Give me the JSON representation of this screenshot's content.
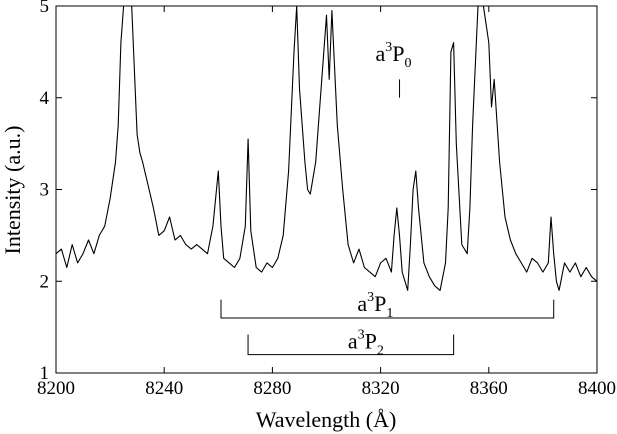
{
  "chart_data": {
    "type": "line",
    "xlabel": "Wavelength (Å)",
    "ylabel": "Intensity (a.u.)",
    "xlim": [
      8200,
      8400
    ],
    "ylim": [
      1,
      5
    ],
    "x_ticks": [
      8200,
      8240,
      8280,
      8320,
      8360,
      8400
    ],
    "y_ticks": [
      1,
      2,
      3,
      4,
      5
    ],
    "grid": false,
    "series": [
      {
        "x": [
          8200,
          8202,
          8204,
          8206,
          8208,
          8210,
          8212,
          8214,
          8216,
          8218,
          8220,
          8222,
          8223,
          8224,
          8225,
          8226,
          8228,
          8230,
          8231,
          8232,
          8234,
          8236,
          8238,
          8240,
          8242,
          8244,
          8246,
          8248,
          8250,
          8252,
          8254,
          8256,
          8258,
          8259,
          8260,
          8261,
          8262,
          8264,
          8266,
          8268,
          8270,
          8271,
          8272,
          8274,
          8276,
          8278,
          8280,
          8282,
          8284,
          8286,
          8288,
          8289,
          8290,
          8292,
          8293,
          8294,
          8296,
          8298,
          8300,
          8301,
          8302,
          8304,
          8306,
          8308,
          8310,
          8312,
          8314,
          8316,
          8318,
          8320,
          8322,
          8324,
          8325,
          8326,
          8327,
          8328,
          8330,
          8331,
          8332,
          8333,
          8334,
          8336,
          8338,
          8340,
          8342,
          8344,
          8345,
          8346,
          8347,
          8348,
          8350,
          8352,
          8353,
          8354,
          8356,
          8358,
          8360,
          8361,
          8362,
          8364,
          8366,
          8368,
          8370,
          8372,
          8374,
          8376,
          8378,
          8380,
          8382,
          8383,
          8384,
          8385,
          8386,
          8388,
          8390,
          8392,
          8394,
          8396,
          8398,
          8400
        ],
        "y": [
          2.3,
          2.35,
          2.15,
          2.4,
          2.2,
          2.3,
          2.45,
          2.3,
          2.5,
          2.6,
          2.9,
          3.3,
          3.7,
          4.6,
          5.0,
          5.0,
          5.0,
          3.6,
          3.4,
          3.3,
          3.05,
          2.8,
          2.5,
          2.55,
          2.7,
          2.45,
          2.5,
          2.4,
          2.35,
          2.4,
          2.35,
          2.3,
          2.6,
          2.9,
          3.2,
          2.6,
          2.25,
          2.2,
          2.15,
          2.25,
          2.6,
          3.55,
          2.55,
          2.15,
          2.1,
          2.2,
          2.15,
          2.25,
          2.5,
          3.2,
          4.5,
          5.0,
          4.1,
          3.3,
          3.0,
          2.95,
          3.3,
          4.1,
          4.9,
          4.2,
          4.95,
          3.7,
          3.0,
          2.4,
          2.2,
          2.35,
          2.15,
          2.1,
          2.05,
          2.2,
          2.25,
          2.1,
          2.5,
          2.8,
          2.5,
          2.1,
          1.9,
          2.4,
          3.0,
          3.2,
          2.8,
          2.2,
          2.05,
          1.95,
          1.9,
          2.2,
          2.8,
          4.5,
          4.6,
          3.5,
          2.4,
          2.3,
          2.8,
          3.7,
          5.0,
          5.0,
          4.6,
          3.9,
          4.2,
          3.3,
          2.7,
          2.45,
          2.3,
          2.2,
          2.1,
          2.25,
          2.2,
          2.1,
          2.2,
          2.7,
          2.3,
          2.0,
          1.9,
          2.2,
          2.1,
          2.2,
          2.05,
          2.15,
          2.05,
          2.0
        ]
      }
    ],
    "annotations": {
      "p0": {
        "base": "a",
        "sup": "3",
        "main": "P",
        "sub": "0",
        "marker_x": 8327
      },
      "p1": {
        "base": "a",
        "sup": "3",
        "main": "P",
        "sub": "1",
        "x_start": 8261,
        "x_end": 8384
      },
      "p2": {
        "base": "a",
        "sup": "3",
        "main": "P",
        "sub": "2",
        "x_start": 8271,
        "x_end": 8347
      }
    }
  }
}
